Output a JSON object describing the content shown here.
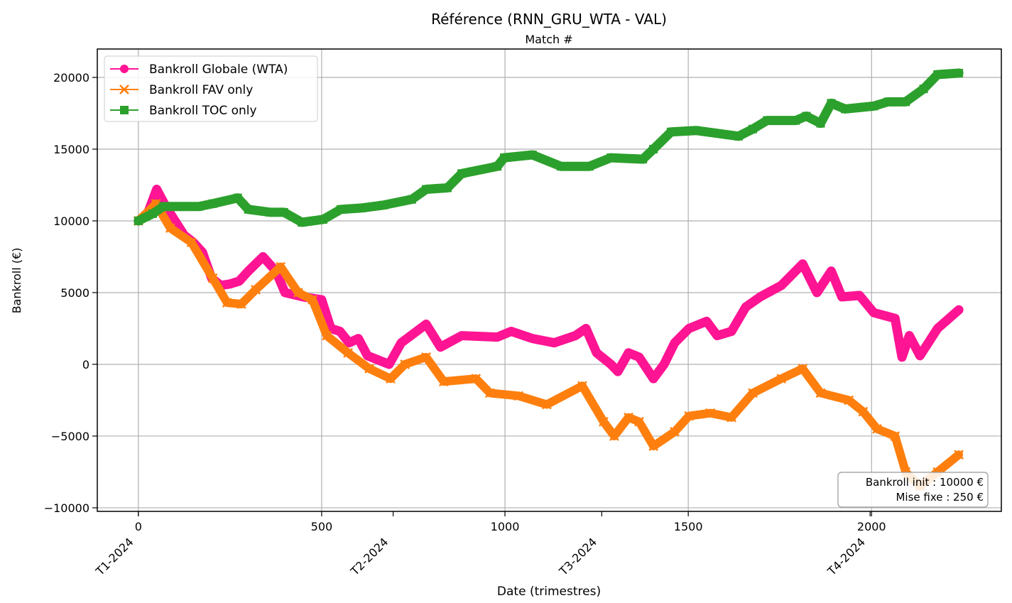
{
  "chart_data": {
    "type": "line",
    "title": "Référence (RNN_GRU_WTA - VAL)",
    "top_xlabel": "Match #",
    "xlabel": "Date (trimestres)",
    "ylabel": "Bankroll (€)",
    "xlim": [
      -112,
      2354
    ],
    "ylim": [
      -10250,
      21980
    ],
    "grid": true,
    "legend_position": "top-left",
    "x_ticks": [
      0,
      500,
      1000,
      1500,
      2000
    ],
    "y_ticks": [
      -10000,
      -5000,
      0,
      5000,
      10000,
      15000,
      20000
    ],
    "y_tick_labels": [
      "−10000",
      "−5000",
      "0",
      "5000",
      "10000",
      "15000",
      "20000"
    ],
    "date_ticks": [
      {
        "label": "T1-2024",
        "x": 0
      },
      {
        "label": "T2-2024",
        "x": 695
      },
      {
        "label": "T3-2024",
        "x": 1264
      },
      {
        "label": "T4-2024",
        "x": 1996
      }
    ],
    "annotation": [
      "Bankroll init : 10000 €",
      "Mise fixe : 250 €"
    ],
    "series": [
      {
        "name": "Bankroll Globale (WTA)",
        "color": "#ff1493",
        "marker": "circle",
        "x": [
          0,
          25,
          50,
          75,
          100,
          125,
          150,
          175,
          200,
          225,
          250,
          275,
          300,
          340,
          375,
          400,
          450,
          500,
          525,
          550,
          575,
          600,
          625,
          684,
          717,
          785,
          824,
          882,
          979,
          1017,
          1075,
          1134,
          1192,
          1221,
          1250,
          1289,
          1308,
          1337,
          1366,
          1405,
          1434,
          1463,
          1502,
          1550,
          1579,
          1618,
          1657,
          1696,
          1754,
          1812,
          1851,
          1890,
          1919,
          1967,
          2006,
          2064,
          2083,
          2103,
          2132,
          2180,
          2238
        ],
        "y": [
          10000,
          10500,
          12200,
          11000,
          10000,
          9000,
          8500,
          7800,
          6000,
          5500,
          5600,
          5800,
          6500,
          7500,
          6500,
          5000,
          4700,
          4500,
          2500,
          2300,
          1500,
          1800,
          600,
          0,
          1500,
          2800,
          1200,
          2000,
          1900,
          2300,
          1800,
          1500,
          2000,
          2500,
          800,
          0,
          -500,
          800,
          500,
          -1000,
          0,
          1500,
          2500,
          3000,
          2000,
          2300,
          4000,
          4700,
          5500,
          7000,
          5000,
          6500,
          4700,
          4800,
          3600,
          3200,
          500,
          2000,
          600,
          2500,
          3800
        ]
      },
      {
        "name": "Bankroll FAV only",
        "color": "#ff7f0e",
        "marker": "x",
        "x": [
          0,
          48,
          87,
          145,
          203,
          242,
          281,
          320,
          388,
          436,
          475,
          514,
          572,
          630,
          688,
          727,
          785,
          833,
          921,
          959,
          1037,
          1114,
          1211,
          1269,
          1298,
          1337,
          1366,
          1405,
          1463,
          1502,
          1560,
          1618,
          1676,
          1754,
          1812,
          1861,
          1938,
          1977,
          2015,
          2064,
          2093,
          2132,
          2180,
          2238
        ],
        "y": [
          10000,
          11200,
          9500,
          8500,
          6000,
          4300,
          4200,
          5200,
          6800,
          5000,
          4500,
          2000,
          800,
          -300,
          -1000,
          0,
          500,
          -1200,
          -1000,
          -2000,
          -2200,
          -2800,
          -1500,
          -4000,
          -5000,
          -3700,
          -4000,
          -5700,
          -4700,
          -3600,
          -3400,
          -3700,
          -2000,
          -1000,
          -300,
          -2000,
          -2500,
          -3300,
          -4500,
          -5000,
          -7500,
          -8500,
          -7500,
          -6300
        ]
      },
      {
        "name": "Bankroll TOC only",
        "color": "#2ca02c",
        "marker": "square",
        "x": [
          0,
          39,
          68,
          165,
          203,
          271,
          300,
          359,
          397,
          446,
          504,
          552,
          610,
          669,
          746,
          785,
          843,
          882,
          979,
          998,
          1075,
          1153,
          1230,
          1289,
          1376,
          1405,
          1453,
          1521,
          1637,
          1676,
          1715,
          1793,
          1822,
          1861,
          1890,
          1928,
          2006,
          2045,
          2093,
          2142,
          2180,
          2238
        ],
        "y": [
          10000,
          10500,
          11000,
          11000,
          11200,
          11600,
          10800,
          10600,
          10600,
          9900,
          10100,
          10800,
          10900,
          11100,
          11500,
          12200,
          12300,
          13300,
          13800,
          14400,
          14600,
          13800,
          13800,
          14400,
          14300,
          15000,
          16200,
          16300,
          15900,
          16400,
          17000,
          17000,
          17300,
          16800,
          18200,
          17800,
          18000,
          18300,
          18300,
          19200,
          20200,
          20300
        ]
      }
    ]
  }
}
